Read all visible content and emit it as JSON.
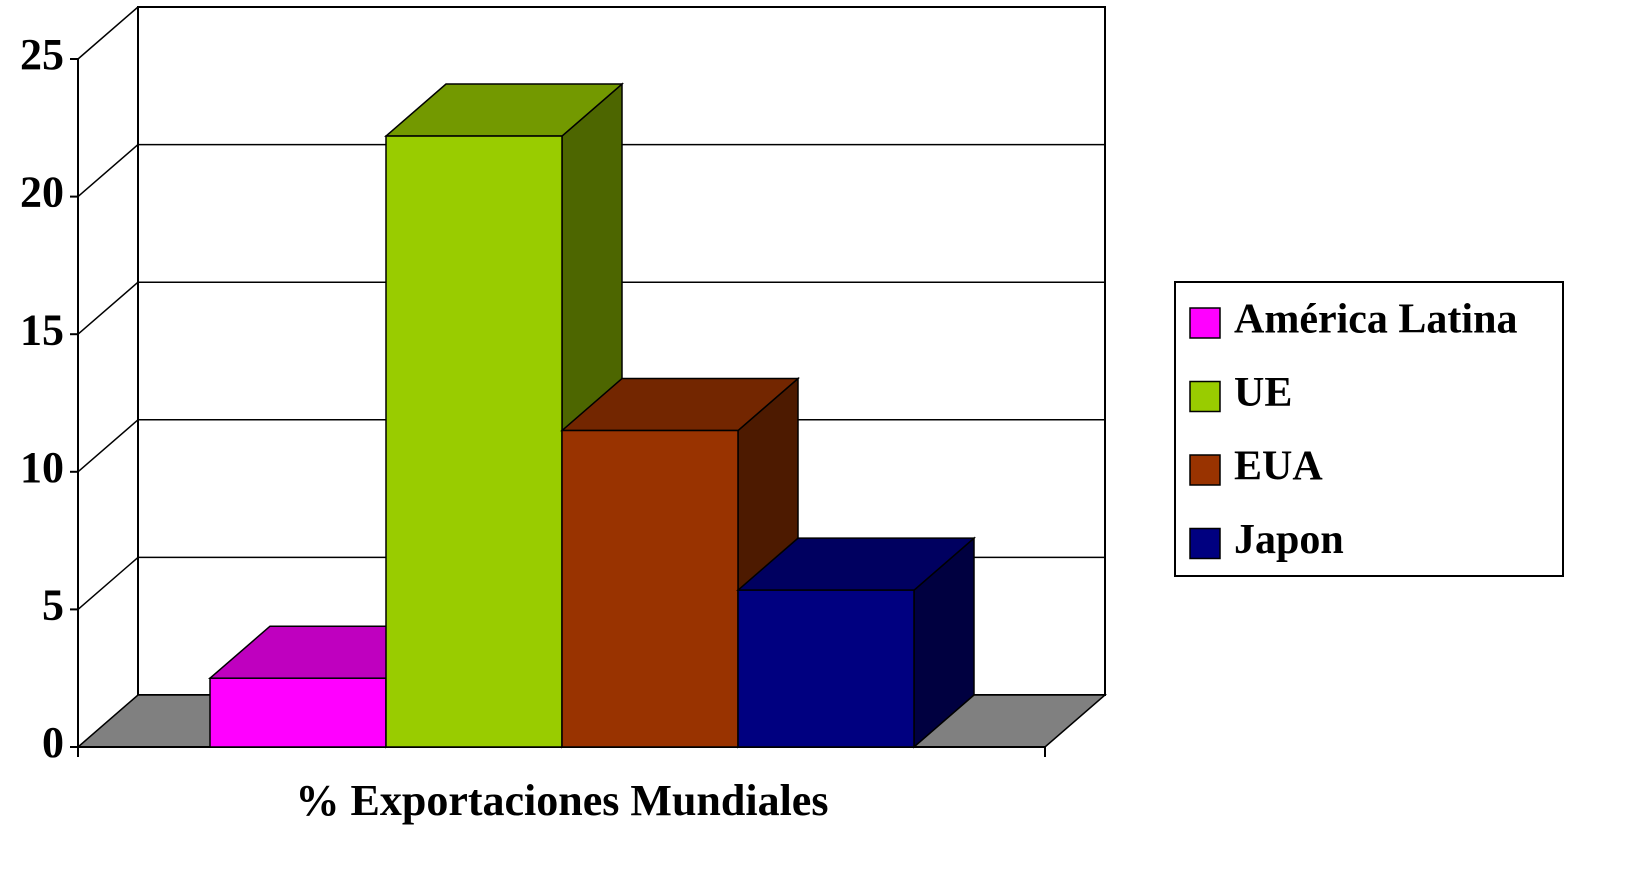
{
  "chart_data": {
    "type": "bar3d",
    "categories": [
      "% Exportaciones Mundiales"
    ],
    "series": [
      {
        "name": "América Latina",
        "color": "#ff00ff",
        "values": [
          2.5
        ]
      },
      {
        "name": "UE",
        "color": "#99cc00",
        "values": [
          22.2
        ]
      },
      {
        "name": "EUA",
        "color": "#993300",
        "values": [
          11.5
        ]
      },
      {
        "name": "Japon",
        "color": "#000080",
        "values": [
          5.7
        ]
      }
    ],
    "ylim": [
      0,
      25
    ],
    "yticks": [
      0,
      5,
      10,
      15,
      20,
      25
    ],
    "grid": true,
    "legend": "right"
  }
}
